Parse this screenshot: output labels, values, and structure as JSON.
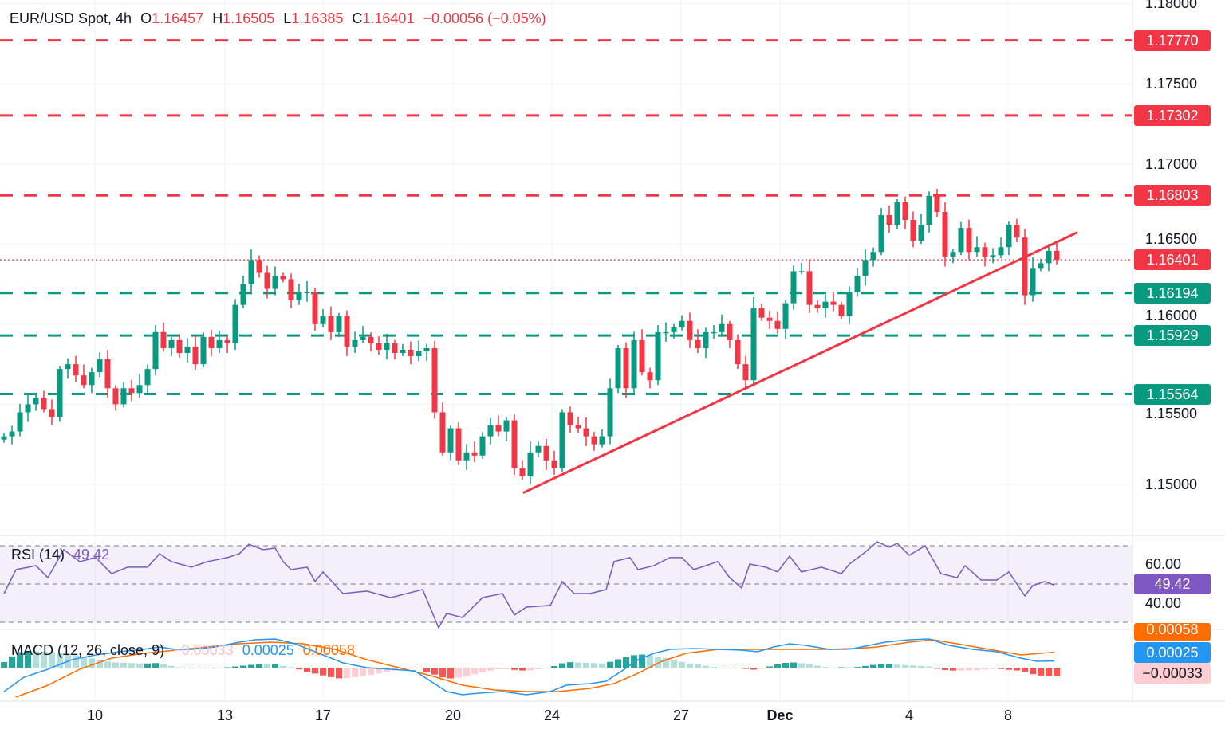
{
  "header": {
    "symbol": "EUR/USD Spot, 4h",
    "open_label": "O",
    "open": "1.16457",
    "high_label": "H",
    "high": "1.16505",
    "low_label": "L",
    "low": "1.16385",
    "close_label": "C",
    "close": "1.16401",
    "change": "−0.00056 (−0.05%)"
  },
  "colors": {
    "up": "#089981",
    "down": "#f23645",
    "rsi": "#7e57c2",
    "macd": "#2196f3",
    "signal": "#ff6d00"
  },
  "chart_data": [
    {
      "type": "candlestick",
      "title": "EUR/USD Spot, 4h",
      "ylim": [
        1.147,
        1.18
      ],
      "y_ticks": [
        "1.18000",
        "1.17500",
        "1.17000",
        "1.16500",
        "1.16000",
        "1.15500",
        "1.15000"
      ],
      "x_ticks": [
        {
          "label": "10",
          "bar": 11.4
        },
        {
          "label": "13",
          "bar": 27.7
        },
        {
          "label": "17",
          "bar": 40
        },
        {
          "label": "20",
          "bar": 56.3
        },
        {
          "label": "24",
          "bar": 68.7
        },
        {
          "label": "27",
          "bar": 84.9
        },
        {
          "label": "Dec",
          "bar": 97.3,
          "bold": true
        },
        {
          "label": "4",
          "bar": 113.5
        },
        {
          "label": "8",
          "bar": 125.9
        }
      ],
      "first_open": 1.1528,
      "closes": [
        1.153,
        1.1533,
        1.1545,
        1.155,
        1.1554,
        1.1547,
        1.1542,
        1.1572,
        1.1575,
        1.1568,
        1.1562,
        1.157,
        1.1578,
        1.156,
        1.155,
        1.156,
        1.1557,
        1.1562,
        1.1572,
        1.1595,
        1.1585,
        1.159,
        1.1582,
        1.1586,
        1.1575,
        1.1592,
        1.1585,
        1.159,
        1.1588,
        1.1612,
        1.1625,
        1.164,
        1.1632,
        1.1622,
        1.163,
        1.1628,
        1.1615,
        1.162,
        1.162,
        1.16,
        1.1605,
        1.1595,
        1.1605,
        1.1586,
        1.159,
        1.1592,
        1.1588,
        1.1584,
        1.1588,
        1.1582,
        1.1584,
        1.158,
        1.1583,
        1.1585,
        1.1545,
        1.152,
        1.1535,
        1.1515,
        1.152,
        1.1518,
        1.153,
        1.1537,
        1.1533,
        1.154,
        1.151,
        1.1505,
        1.152,
        1.1524,
        1.1515,
        1.151,
        1.1545,
        1.1537,
        1.1535,
        1.153,
        1.1525,
        1.153,
        1.156,
        1.1585,
        1.156,
        1.159,
        1.157,
        1.1565,
        1.1595,
        1.1595,
        1.1598,
        1.1602,
        1.159,
        1.1585,
        1.1595,
        1.1595,
        1.16,
        1.159,
        1.1575,
        1.1565,
        1.161,
        1.1604,
        1.1602,
        1.1597,
        1.1613,
        1.1633,
        1.1633,
        1.1612,
        1.161,
        1.1614,
        1.1612,
        1.1605,
        1.162,
        1.163,
        1.164,
        1.1645,
        1.1668,
        1.1662,
        1.1676,
        1.1665,
        1.1652,
        1.1662,
        1.168,
        1.167,
        1.1642,
        1.1645,
        1.166,
        1.1645,
        1.1648,
        1.1642,
        1.1643,
        1.1648,
        1.1662,
        1.1654,
        1.1618,
        1.1635,
        1.1638,
        1.16457,
        1.16401
      ],
      "levels": [
        {
          "price": 1.1777,
          "label": "1.17770",
          "kind": "resistance"
        },
        {
          "price": 1.17302,
          "label": "1.17302",
          "kind": "resistance"
        },
        {
          "price": 1.16803,
          "label": "1.16803",
          "kind": "resistance"
        },
        {
          "price": 1.16194,
          "label": "1.16194",
          "kind": "support"
        },
        {
          "price": 1.15929,
          "label": "1.15929",
          "kind": "support"
        },
        {
          "price": 1.15564,
          "label": "1.15564",
          "kind": "support"
        }
      ],
      "last_price": {
        "price": 1.16401,
        "label": "1.16401"
      },
      "trendline": [
        {
          "bar": 65.2,
          "price": 1.1495
        },
        {
          "bar": 134.5,
          "price": 1.1657
        }
      ]
    },
    {
      "type": "line",
      "title": "RSI (14)",
      "value": "49.42",
      "ylim": [
        25,
        75
      ],
      "y_ticks": [
        "60.00",
        "40.00"
      ],
      "bands": [
        70,
        50,
        30
      ],
      "points": [
        [
          0,
          45.0
        ],
        [
          1.5,
          57.5
        ],
        [
          4,
          59.6
        ],
        [
          5.5,
          53.3
        ],
        [
          7.5,
          67.9
        ],
        [
          9.5,
          61.7
        ],
        [
          11.5,
          63.8
        ],
        [
          13.5,
          55.4
        ],
        [
          15.5,
          58.8
        ],
        [
          18,
          58.8
        ],
        [
          19.5,
          65.8
        ],
        [
          21,
          61.7
        ],
        [
          23.5,
          58.8
        ],
        [
          25.5,
          61.7
        ],
        [
          28,
          63.8
        ],
        [
          29.5,
          65.8
        ],
        [
          30.7,
          70.8
        ],
        [
          32.5,
          67.9
        ],
        [
          34,
          68.8
        ],
        [
          35,
          61.7
        ],
        [
          36,
          57.5
        ],
        [
          38,
          58.8
        ],
        [
          39,
          51.3
        ],
        [
          40,
          56.3
        ],
        [
          42.5,
          45.0
        ],
        [
          45.5,
          46.3
        ],
        [
          48.5,
          42.9
        ],
        [
          52.5,
          47.1
        ],
        [
          54.5,
          27.1
        ],
        [
          55.5,
          34.6
        ],
        [
          57.5,
          32.5
        ],
        [
          60,
          42.9
        ],
        [
          62.5,
          45.0
        ],
        [
          64,
          33.8
        ],
        [
          65.5,
          37.9
        ],
        [
          68.5,
          38.8
        ],
        [
          70,
          51.3
        ],
        [
          71.5,
          45.0
        ],
        [
          73.5,
          45.0
        ],
        [
          75.5,
          47.1
        ],
        [
          76.5,
          61.7
        ],
        [
          78.5,
          63.8
        ],
        [
          79.5,
          57.5
        ],
        [
          81.5,
          59.6
        ],
        [
          83.5,
          63.8
        ],
        [
          85,
          63.8
        ],
        [
          86.5,
          57.5
        ],
        [
          89.5,
          61.7
        ],
        [
          91,
          53.3
        ],
        [
          92.5,
          47.9
        ],
        [
          93.5,
          60.4
        ],
        [
          95.5,
          58.8
        ],
        [
          97,
          56.3
        ],
        [
          98.5,
          64.6
        ],
        [
          100,
          56.3
        ],
        [
          102.5,
          58.8
        ],
        [
          105,
          55.4
        ],
        [
          106,
          60.4
        ],
        [
          108,
          66.7
        ],
        [
          109.5,
          72.1
        ],
        [
          111,
          69.2
        ],
        [
          112,
          71.3
        ],
        [
          113.5,
          65.0
        ],
        [
          115.5,
          70.0
        ],
        [
          117.5,
          55.4
        ],
        [
          119.5,
          53.3
        ],
        [
          120.5,
          59.6
        ],
        [
          122.5,
          52.1
        ],
        [
          124.5,
          52.1
        ],
        [
          126,
          56.3
        ],
        [
          128,
          43.8
        ],
        [
          129,
          49.2
        ],
        [
          130.5,
          51.3
        ],
        [
          131.7,
          49.42
        ]
      ]
    },
    {
      "type": "line",
      "title": "MACD (12, 26, close, 9)",
      "histogram_value": "−0.00033",
      "macd_value": "0.00025",
      "signal_value": "0.00058",
      "macd": [
        [
          0,
          -0.0009
        ],
        [
          2.5,
          -0.00036
        ],
        [
          5.5,
          -6e-05
        ],
        [
          8.5,
          0.0003
        ],
        [
          11.5,
          0.00048
        ],
        [
          14.5,
          0.0006
        ],
        [
          17.5,
          0.00069
        ],
        [
          19.5,
          0.00078
        ],
        [
          21.5,
          0.00069
        ],
        [
          23.5,
          0.00069
        ],
        [
          26.5,
          0.00078
        ],
        [
          29.5,
          0.00096
        ],
        [
          31.5,
          0.00105
        ],
        [
          34,
          0.00108
        ],
        [
          36.5,
          0.0009
        ],
        [
          39.5,
          0.00054
        ],
        [
          42.5,
          0.00018
        ],
        [
          45.5,
          0
        ],
        [
          48.5,
          -6e-05
        ],
        [
          51.5,
          -0.00012
        ],
        [
          53.5,
          -0.00051
        ],
        [
          55.5,
          -0.0009
        ],
        [
          57.5,
          -0.00102
        ],
        [
          59.5,
          -0.00096
        ],
        [
          62.5,
          -0.0009
        ],
        [
          65.5,
          -0.00102
        ],
        [
          68.5,
          -0.0009
        ],
        [
          70.5,
          -0.00066
        ],
        [
          73.5,
          -0.0006
        ],
        [
          75.5,
          -0.00051
        ],
        [
          77.5,
          -0.00012
        ],
        [
          79.5,
          0.0003
        ],
        [
          81.5,
          0.00054
        ],
        [
          83.5,
          0.00069
        ],
        [
          86.5,
          0.00072
        ],
        [
          89.5,
          0.00069
        ],
        [
          92.5,
          0.00066
        ],
        [
          94.5,
          0.0006
        ],
        [
          96.5,
          0.00078
        ],
        [
          98.5,
          0.0009
        ],
        [
          100.5,
          0.00084
        ],
        [
          103.5,
          0.00069
        ],
        [
          106.5,
          0.00072
        ],
        [
          108.5,
          0.00084
        ],
        [
          110.5,
          0.00096
        ],
        [
          113.5,
          0.00105
        ],
        [
          116,
          0.00108
        ],
        [
          118.5,
          0.00084
        ],
        [
          121.5,
          0.00069
        ],
        [
          124.5,
          0.0006
        ],
        [
          127.5,
          0.00036
        ],
        [
          129.5,
          0.00024
        ],
        [
          131.7,
          0.00025
        ]
      ],
      "signal": [
        [
          1.5,
          -0.00111
        ],
        [
          5.5,
          -0.00066
        ],
        [
          9.5,
          -6e-05
        ],
        [
          13.5,
          0.00036
        ],
        [
          17.5,
          0.00054
        ],
        [
          21.5,
          0.00066
        ],
        [
          25.5,
          0.00078
        ],
        [
          29.5,
          0.0009
        ],
        [
          33.5,
          0.00096
        ],
        [
          37.5,
          0.0009
        ],
        [
          41.5,
          0.00069
        ],
        [
          45.5,
          0.0003
        ],
        [
          49.5,
          0
        ],
        [
          53.5,
          -0.0003
        ],
        [
          57.5,
          -0.00066
        ],
        [
          61.5,
          -0.00084
        ],
        [
          65.5,
          -0.0009
        ],
        [
          69.5,
          -0.0009
        ],
        [
          73.5,
          -0.00078
        ],
        [
          76.5,
          -0.0006
        ],
        [
          79.5,
          -0.00021
        ],
        [
          82.5,
          0.00024
        ],
        [
          85.5,
          0.00054
        ],
        [
          89.5,
          0.00069
        ],
        [
          93.5,
          0.00069
        ],
        [
          97.5,
          0.00069
        ],
        [
          101.5,
          0.00069
        ],
        [
          105.5,
          0.00069
        ],
        [
          109.5,
          0.00078
        ],
        [
          113.5,
          0.00096
        ],
        [
          116.5,
          0.00105
        ],
        [
          119.5,
          0.0009
        ],
        [
          123.5,
          0.00069
        ],
        [
          127.5,
          0.00048
        ],
        [
          131.7,
          0.00058
        ]
      ]
    }
  ]
}
